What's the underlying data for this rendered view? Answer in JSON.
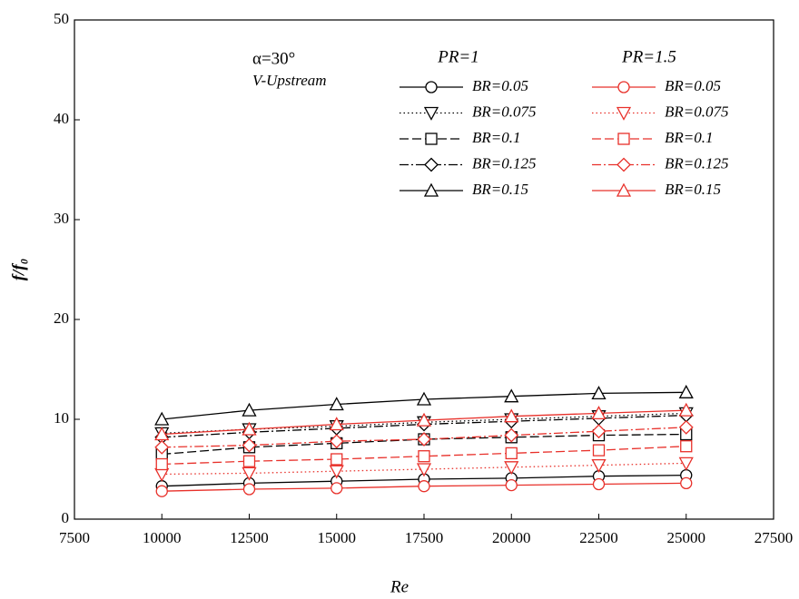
{
  "chart_data": {
    "type": "line",
    "xlabel": "Re",
    "ylabel": "f/f₀",
    "annotations": [
      "α=30°",
      "V-Upstream"
    ],
    "legend_titles": [
      "PR=1",
      "PR=1.5"
    ],
    "x": [
      10000,
      12500,
      15000,
      17500,
      20000,
      22500,
      25000
    ],
    "xlim": [
      7500,
      27500
    ],
    "xticks": [
      7500,
      10000,
      12500,
      15000,
      17500,
      20000,
      22500,
      25000,
      27500
    ],
    "ylim": [
      0,
      50
    ],
    "yticks": [
      0,
      10,
      20,
      30,
      40,
      50
    ],
    "series": [
      {
        "name": "BR=0.05",
        "group": 0,
        "color": "#000000",
        "style": "solid",
        "marker": "circle",
        "values": [
          3.3,
          3.6,
          3.8,
          4.0,
          4.1,
          4.3,
          4.4
        ]
      },
      {
        "name": "BR=0.075",
        "group": 0,
        "color": "#000000",
        "style": "dotted",
        "marker": "triangle-down",
        "values": [
          8.6,
          9.0,
          9.3,
          9.7,
          10.0,
          10.3,
          10.6
        ]
      },
      {
        "name": "BR=0.1",
        "group": 0,
        "color": "#000000",
        "style": "dashed",
        "marker": "square",
        "values": [
          6.5,
          7.2,
          7.6,
          8.0,
          8.2,
          8.4,
          8.5
        ]
      },
      {
        "name": "BR=0.125",
        "group": 0,
        "color": "#000000",
        "style": "dashdot",
        "marker": "diamond",
        "values": [
          8.2,
          8.7,
          9.1,
          9.5,
          9.8,
          10.1,
          10.4
        ]
      },
      {
        "name": "BR=0.15",
        "group": 0,
        "color": "#000000",
        "style": "solid",
        "marker": "triangle-up",
        "values": [
          10.0,
          10.9,
          11.5,
          12.0,
          12.3,
          12.6,
          12.7
        ]
      },
      {
        "name": "BR=0.05",
        "group": 1,
        "color": "#e8302a",
        "style": "solid",
        "marker": "circle",
        "values": [
          2.8,
          3.0,
          3.1,
          3.3,
          3.4,
          3.5,
          3.6
        ]
      },
      {
        "name": "BR=0.075",
        "group": 1,
        "color": "#e8302a",
        "style": "dotted",
        "marker": "triangle-down",
        "values": [
          4.5,
          4.6,
          4.8,
          5.0,
          5.2,
          5.4,
          5.6
        ]
      },
      {
        "name": "BR=0.1",
        "group": 1,
        "color": "#e8302a",
        "style": "dashed",
        "marker": "square",
        "values": [
          5.5,
          5.8,
          6.0,
          6.3,
          6.6,
          6.9,
          7.3
        ]
      },
      {
        "name": "BR=0.125",
        "group": 1,
        "color": "#e8302a",
        "style": "dashdot",
        "marker": "diamond",
        "values": [
          7.2,
          7.4,
          7.8,
          8.0,
          8.4,
          8.8,
          9.2
        ]
      },
      {
        "name": "BR=0.15",
        "group": 1,
        "color": "#e8302a",
        "style": "solid",
        "marker": "triangle-up",
        "values": [
          8.5,
          9.0,
          9.5,
          9.9,
          10.3,
          10.6,
          10.9
        ]
      }
    ]
  }
}
